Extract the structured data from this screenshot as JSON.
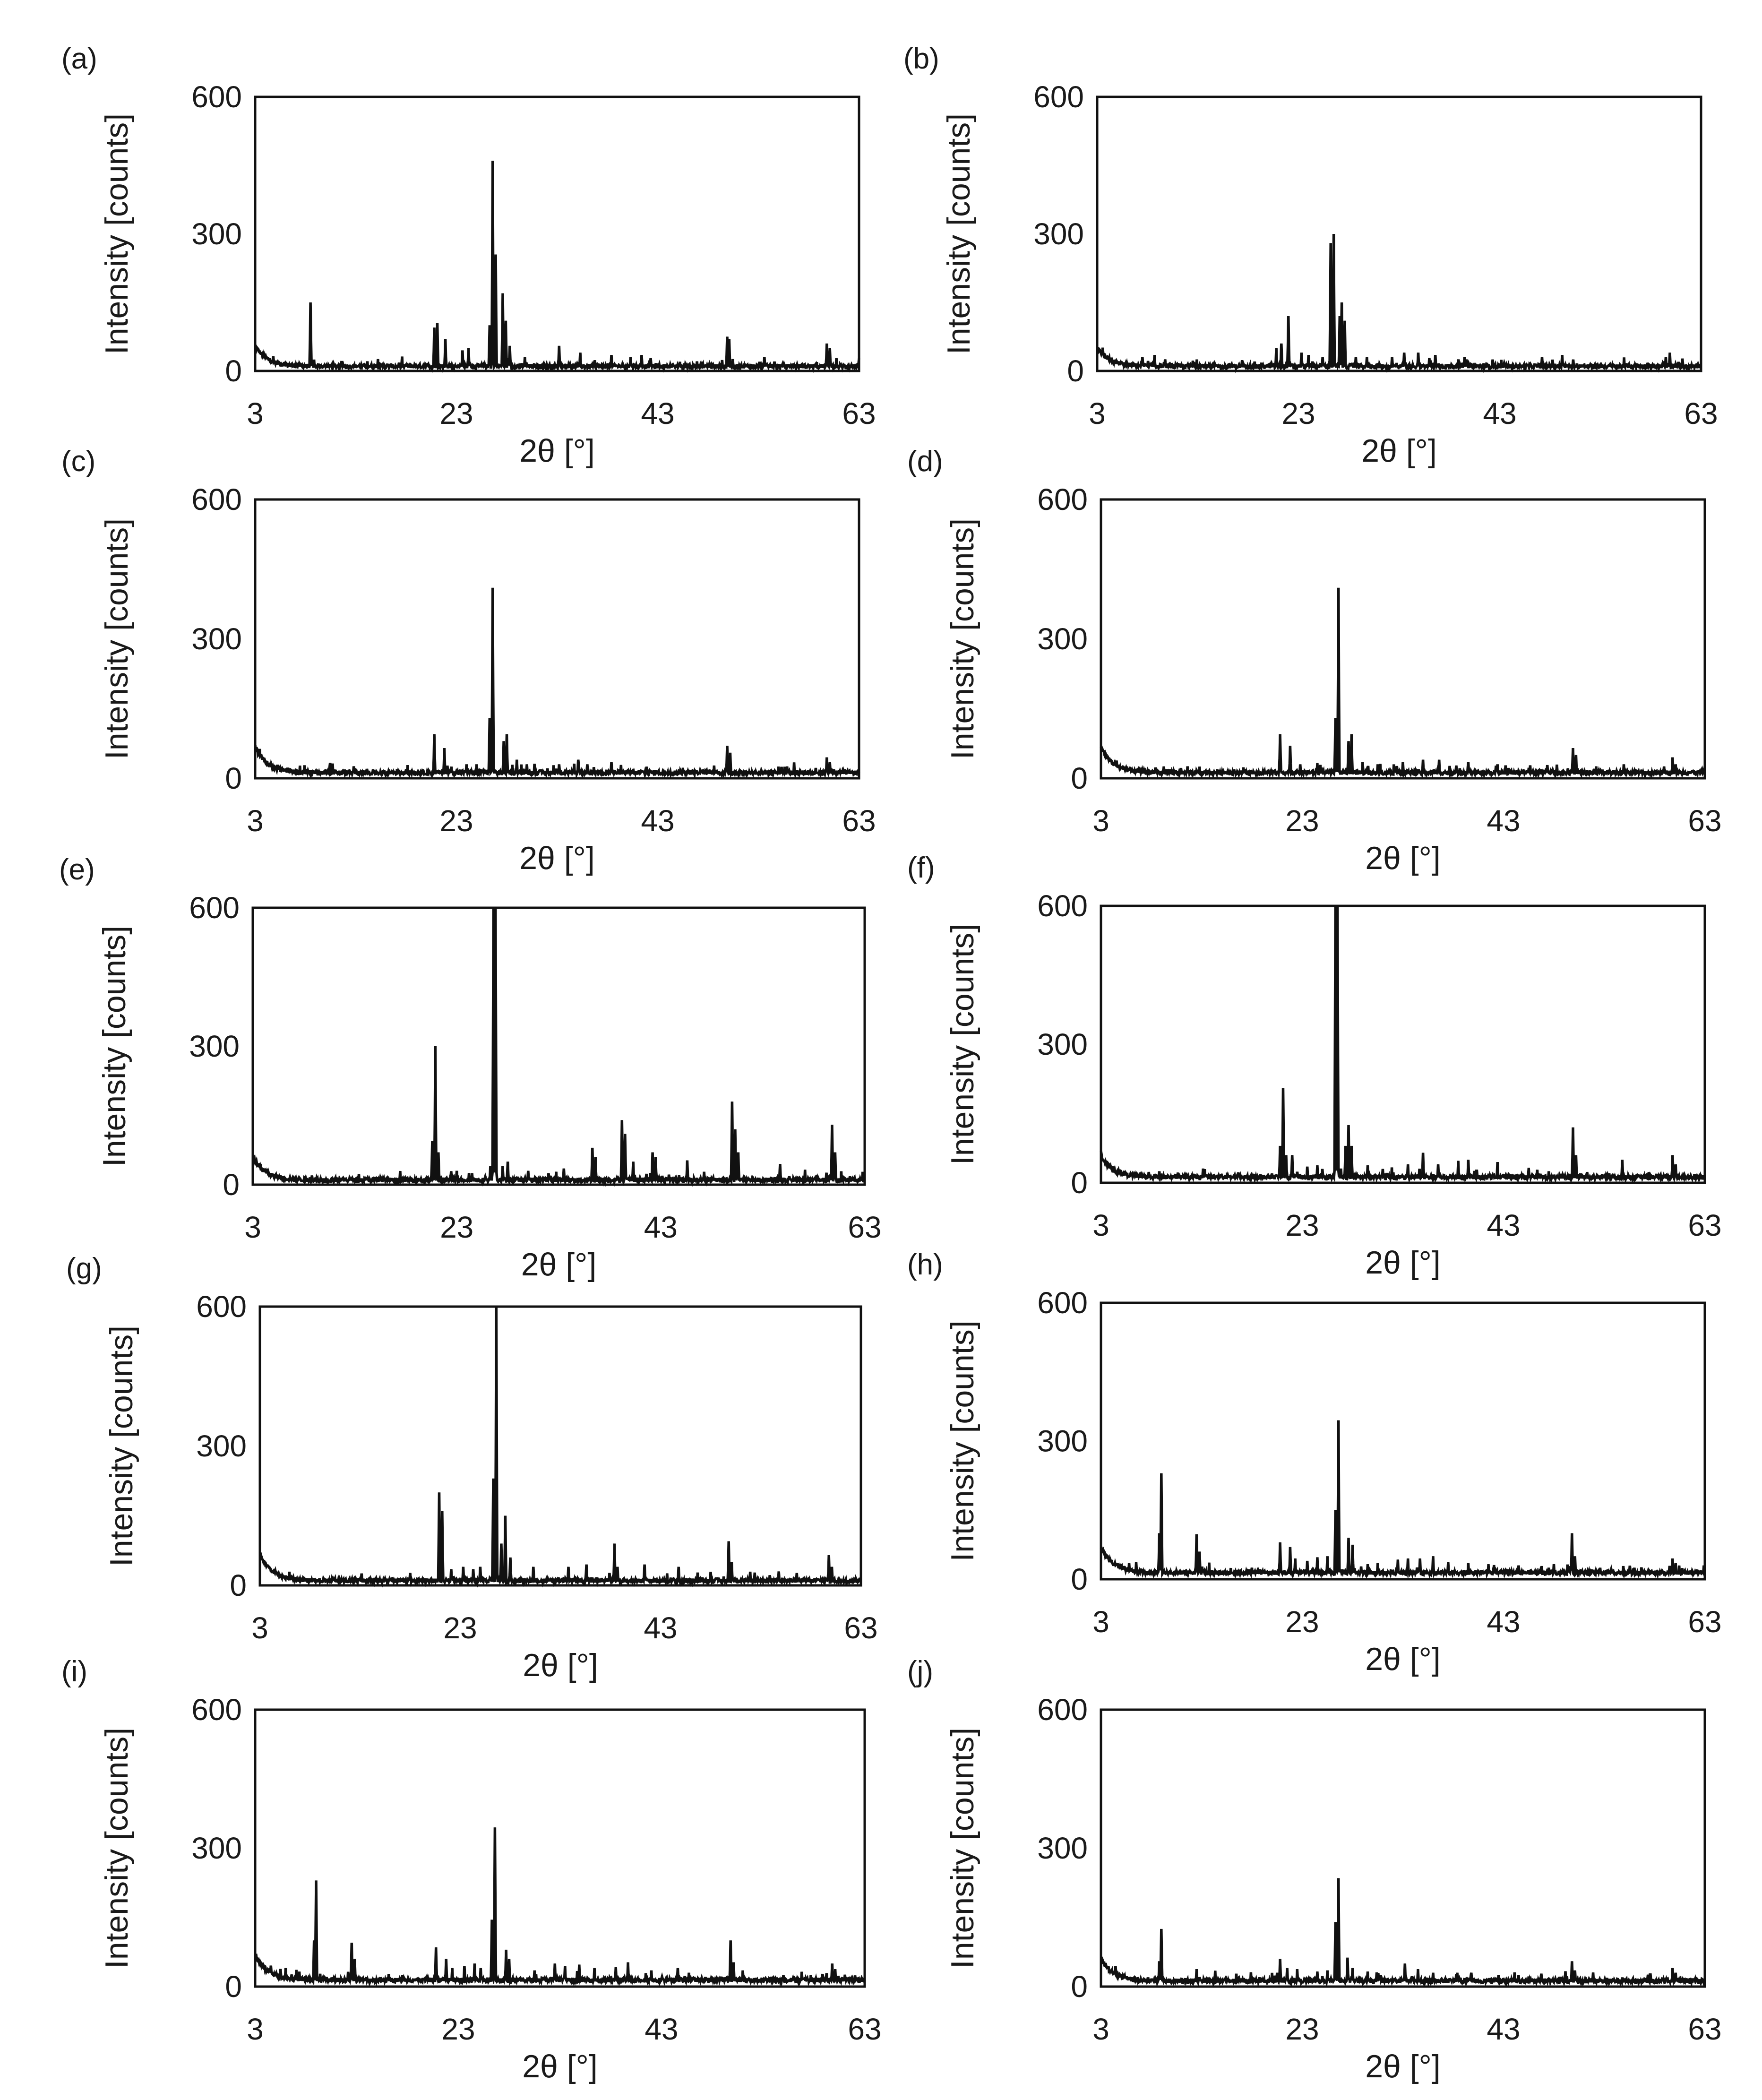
{
  "figure": {
    "panels": [
      "(a)",
      "(b)",
      "(c)",
      "(d)",
      "(e)",
      "(f)",
      "(g)",
      "(h)",
      "(i)",
      "(j)"
    ],
    "line_color": "#111111"
  },
  "chart_data": [
    {
      "id": "a",
      "label": "(a)",
      "type": "line",
      "xlabel": "2θ [°]",
      "ylabel": "Intensity [counts]",
      "xlim": [
        3,
        63
      ],
      "ylim": [
        0,
        600
      ],
      "xticks": [
        "3",
        "23",
        "43",
        "63"
      ],
      "yticks": [
        "0",
        "300",
        "600"
      ],
      "baseline": 6,
      "low_angle": 45,
      "peaks": [
        [
          8.5,
          150
        ],
        [
          20.8,
          95
        ],
        [
          21.1,
          105
        ],
        [
          21.9,
          70
        ],
        [
          23.6,
          45
        ],
        [
          24.2,
          50
        ],
        [
          26.3,
          100
        ],
        [
          26.6,
          460
        ],
        [
          26.9,
          255
        ],
        [
          27.6,
          170
        ],
        [
          27.9,
          110
        ],
        [
          28.3,
          55
        ],
        [
          29.8,
          30
        ],
        [
          33.2,
          55
        ],
        [
          35.3,
          40
        ],
        [
          38.4,
          35
        ],
        [
          40.3,
          30
        ],
        [
          41.4,
          35
        ],
        [
          42.3,
          28
        ],
        [
          45.2,
          20
        ],
        [
          49.9,
          75
        ],
        [
          50.1,
          70
        ],
        [
          53.1,
          20
        ],
        [
          59.8,
          60
        ],
        [
          60.1,
          50
        ]
      ]
    },
    {
      "id": "b",
      "label": "(b)",
      "type": "line",
      "xlabel": "2θ [°]",
      "ylabel": "Intensity [counts]",
      "xlim": [
        3,
        63
      ],
      "ylim": [
        0,
        600
      ],
      "xticks": [
        "3",
        "23",
        "43",
        "63"
      ],
      "yticks": [
        "0",
        "300",
        "600"
      ],
      "baseline": 6,
      "low_angle": 40,
      "peaks": [
        [
          8.7,
          35
        ],
        [
          12.5,
          20
        ],
        [
          20.8,
          50
        ],
        [
          21.3,
          60
        ],
        [
          22.0,
          120
        ],
        [
          23.3,
          40
        ],
        [
          24.0,
          35
        ],
        [
          25.4,
          30
        ],
        [
          26.2,
          280
        ],
        [
          26.5,
          300
        ],
        [
          27.1,
          120
        ],
        [
          27.3,
          150
        ],
        [
          27.6,
          110
        ],
        [
          28.7,
          30
        ],
        [
          29.8,
          30
        ],
        [
          32.3,
          30
        ],
        [
          33.5,
          40
        ],
        [
          34.9,
          40
        ],
        [
          36.6,
          35
        ],
        [
          39.5,
          30
        ],
        [
          42.3,
          25
        ],
        [
          47.2,
          30
        ],
        [
          49.2,
          35
        ],
        [
          50.3,
          25
        ],
        [
          59.5,
          30
        ],
        [
          59.9,
          40
        ]
      ]
    },
    {
      "id": "c",
      "label": "(c)",
      "type": "line",
      "xlabel": "2θ [°]",
      "ylabel": "Intensity [counts]",
      "xlim": [
        3,
        63
      ],
      "ylim": [
        0,
        600
      ],
      "xticks": [
        "3",
        "23",
        "43",
        "63"
      ],
      "yticks": [
        "0",
        "300",
        "600"
      ],
      "baseline": 8,
      "low_angle": 55,
      "peaks": [
        [
          13.0,
          20
        ],
        [
          20.8,
          95
        ],
        [
          21.8,
          65
        ],
        [
          22.5,
          25
        ],
        [
          24.0,
          30
        ],
        [
          25.0,
          30
        ],
        [
          26.3,
          130
        ],
        [
          26.6,
          410
        ],
        [
          27.7,
          80
        ],
        [
          28.0,
          95
        ],
        [
          29.0,
          40
        ],
        [
          30.0,
          30
        ],
        [
          33.2,
          30
        ],
        [
          35.1,
          40
        ],
        [
          36.0,
          30
        ],
        [
          38.4,
          35
        ],
        [
          41.9,
          25
        ],
        [
          45.5,
          20
        ],
        [
          49.9,
          70
        ],
        [
          50.2,
          55
        ],
        [
          55.0,
          25
        ],
        [
          59.8,
          45
        ],
        [
          60.1,
          35
        ]
      ]
    },
    {
      "id": "d",
      "label": "(d)",
      "type": "line",
      "xlabel": "2θ [°]",
      "ylabel": "Intensity [counts]",
      "xlim": [
        3,
        63
      ],
      "ylim": [
        0,
        600
      ],
      "xticks": [
        "3",
        "23",
        "43",
        "63"
      ],
      "yticks": [
        "0",
        "300",
        "600"
      ],
      "baseline": 8,
      "low_angle": 55,
      "peaks": [
        [
          12.8,
          25
        ],
        [
          20.8,
          95
        ],
        [
          21.8,
          70
        ],
        [
          22.8,
          30
        ],
        [
          24.5,
          30
        ],
        [
          26.3,
          130
        ],
        [
          26.6,
          410
        ],
        [
          27.6,
          80
        ],
        [
          27.9,
          95
        ],
        [
          29.0,
          35
        ],
        [
          30.5,
          30
        ],
        [
          33.0,
          35
        ],
        [
          35.0,
          40
        ],
        [
          36.6,
          40
        ],
        [
          39.5,
          35
        ],
        [
          42.4,
          30
        ],
        [
          45.5,
          20
        ],
        [
          49.9,
          65
        ],
        [
          50.2,
          50
        ],
        [
          52.0,
          20
        ],
        [
          59.8,
          45
        ],
        [
          60.1,
          30
        ]
      ]
    },
    {
      "id": "e",
      "label": "(e)",
      "type": "line",
      "xlabel": "2θ [°]",
      "ylabel": "Intensity [counts]",
      "xlim": [
        3,
        63
      ],
      "ylim": [
        0,
        600
      ],
      "xticks": [
        "3",
        "23",
        "43",
        "63"
      ],
      "yticks": [
        "0",
        "300",
        "600"
      ],
      "baseline": 6,
      "low_angle": 50,
      "peaks": [
        [
          8.8,
          20
        ],
        [
          12.5,
          15
        ],
        [
          20.6,
          95
        ],
        [
          20.9,
          300
        ],
        [
          21.2,
          70
        ],
        [
          23.0,
          30
        ],
        [
          24.5,
          25
        ],
        [
          26.3,
          40
        ],
        [
          26.6,
          600
        ],
        [
          26.8,
          600
        ],
        [
          27.5,
          40
        ],
        [
          28.0,
          50
        ],
        [
          30.0,
          30
        ],
        [
          32.0,
          25
        ],
        [
          33.5,
          35
        ],
        [
          36.3,
          80
        ],
        [
          36.6,
          60
        ],
        [
          39.2,
          140
        ],
        [
          39.5,
          110
        ],
        [
          40.3,
          50
        ],
        [
          42.2,
          70
        ],
        [
          42.5,
          60
        ],
        [
          45.6,
          50
        ],
        [
          50.0,
          180
        ],
        [
          50.3,
          120
        ],
        [
          50.6,
          70
        ],
        [
          54.7,
          45
        ],
        [
          59.8,
          130
        ],
        [
          60.1,
          70
        ]
      ]
    },
    {
      "id": "f",
      "label": "(f)",
      "type": "line",
      "xlabel": "2θ [°]",
      "ylabel": "Intensity [counts]",
      "xlim": [
        3,
        63
      ],
      "ylim": [
        0,
        600
      ],
      "xticks": [
        "3",
        "23",
        "43",
        "63"
      ],
      "yticks": [
        "0",
        "300",
        "600"
      ],
      "baseline": 8,
      "low_angle": 45,
      "peaks": [
        [
          8.8,
          25
        ],
        [
          12.3,
          15
        ],
        [
          20.0,
          20
        ],
        [
          20.8,
          80
        ],
        [
          21.1,
          205
        ],
        [
          21.4,
          60
        ],
        [
          22.0,
          60
        ],
        [
          23.5,
          35
        ],
        [
          24.5,
          35
        ],
        [
          25.0,
          30
        ],
        [
          26.3,
          600
        ],
        [
          26.5,
          600
        ],
        [
          27.3,
          80
        ],
        [
          27.6,
          125
        ],
        [
          27.9,
          80
        ],
        [
          29.5,
          35
        ],
        [
          31.0,
          30
        ],
        [
          33.5,
          40
        ],
        [
          35.0,
          65
        ],
        [
          36.5,
          40
        ],
        [
          38.5,
          45
        ],
        [
          39.5,
          50
        ],
        [
          42.4,
          45
        ],
        [
          45.5,
          30
        ],
        [
          47.5,
          25
        ],
        [
          49.9,
          120
        ],
        [
          50.2,
          60
        ],
        [
          54.8,
          50
        ],
        [
          59.8,
          60
        ],
        [
          60.1,
          40
        ]
      ]
    },
    {
      "id": "g",
      "label": "(g)",
      "type": "line",
      "xlabel": "2θ [°]",
      "ylabel": "Intensity [counts]",
      "xlim": [
        3,
        63
      ],
      "ylim": [
        0,
        600
      ],
      "xticks": [
        "3",
        "23",
        "43",
        "63"
      ],
      "yticks": [
        "0",
        "300",
        "600"
      ],
      "baseline": 6,
      "low_angle": 60,
      "peaks": [
        [
          8.0,
          15
        ],
        [
          14.0,
          15
        ],
        [
          15.5,
          15
        ],
        [
          20.9,
          200
        ],
        [
          21.2,
          160
        ],
        [
          22.1,
          35
        ],
        [
          23.3,
          40
        ],
        [
          24.3,
          35
        ],
        [
          25.0,
          40
        ],
        [
          26.3,
          230
        ],
        [
          26.6,
          600
        ],
        [
          27.1,
          90
        ],
        [
          27.5,
          150
        ],
        [
          28.0,
          60
        ],
        [
          30.3,
          40
        ],
        [
          33.8,
          40
        ],
        [
          35.6,
          45
        ],
        [
          38.4,
          90
        ],
        [
          38.7,
          40
        ],
        [
          41.4,
          45
        ],
        [
          44.8,
          40
        ],
        [
          49.8,
          95
        ],
        [
          50.1,
          50
        ],
        [
          52.4,
          25
        ],
        [
          54.8,
          30
        ],
        [
          59.8,
          65
        ],
        [
          60.1,
          40
        ]
      ]
    },
    {
      "id": "h",
      "label": "(h)",
      "type": "line",
      "xlabel": "2θ [°]",
      "ylabel": "Intensity [counts]",
      "xlim": [
        3,
        63
      ],
      "ylim": [
        0,
        600
      ],
      "xticks": [
        "3",
        "23",
        "43",
        "63"
      ],
      "yticks": [
        "0",
        "300",
        "600"
      ],
      "baseline": 10,
      "low_angle": 55,
      "peaks": [
        [
          6.5,
          35
        ],
        [
          8.8,
          100
        ],
        [
          9.0,
          230
        ],
        [
          12.5,
          95
        ],
        [
          12.8,
          60
        ],
        [
          18.0,
          25
        ],
        [
          20.8,
          80
        ],
        [
          21.8,
          70
        ],
        [
          22.3,
          45
        ],
        [
          23.5,
          40
        ],
        [
          24.5,
          45
        ],
        [
          25.5,
          50
        ],
        [
          26.3,
          150
        ],
        [
          26.6,
          345
        ],
        [
          27.6,
          90
        ],
        [
          28.0,
          75
        ],
        [
          29.5,
          30
        ],
        [
          30.5,
          35
        ],
        [
          32.5,
          40
        ],
        [
          33.5,
          45
        ],
        [
          34.7,
          45
        ],
        [
          36.0,
          50
        ],
        [
          37.5,
          35
        ],
        [
          39.5,
          35
        ],
        [
          41.5,
          30
        ],
        [
          44.5,
          30
        ],
        [
          47.5,
          25
        ],
        [
          49.8,
          100
        ],
        [
          50.1,
          50
        ],
        [
          52.6,
          25
        ],
        [
          56.0,
          25
        ],
        [
          59.8,
          45
        ],
        [
          60.1,
          35
        ]
      ]
    },
    {
      "id": "i",
      "label": "(i)",
      "type": "line",
      "xlabel": "2θ [°]",
      "ylabel": "Intensity [counts]",
      "xlim": [
        3,
        63
      ],
      "ylim": [
        0,
        600
      ],
      "xticks": [
        "3",
        "23",
        "43",
        "63"
      ],
      "yticks": [
        "0",
        "300",
        "600"
      ],
      "baseline": 10,
      "low_angle": 55,
      "peaks": [
        [
          6.0,
          40
        ],
        [
          8.8,
          100
        ],
        [
          9.0,
          230
        ],
        [
          12.5,
          95
        ],
        [
          12.8,
          60
        ],
        [
          17.5,
          25
        ],
        [
          20.8,
          85
        ],
        [
          21.8,
          60
        ],
        [
          22.4,
          40
        ],
        [
          23.6,
          45
        ],
        [
          24.6,
          50
        ],
        [
          25.2,
          40
        ],
        [
          26.3,
          145
        ],
        [
          26.6,
          345
        ],
        [
          27.7,
          80
        ],
        [
          28.0,
          60
        ],
        [
          30.5,
          35
        ],
        [
          32.5,
          50
        ],
        [
          33.5,
          45
        ],
        [
          34.9,
          45
        ],
        [
          36.4,
          40
        ],
        [
          38.5,
          40
        ],
        [
          39.7,
          50
        ],
        [
          42.0,
          35
        ],
        [
          44.6,
          40
        ],
        [
          45.7,
          30
        ],
        [
          49.8,
          100
        ],
        [
          50.1,
          50
        ],
        [
          51.0,
          35
        ],
        [
          55.0,
          25
        ],
        [
          59.8,
          50
        ],
        [
          60.1,
          35
        ]
      ]
    },
    {
      "id": "j",
      "label": "(j)",
      "type": "line",
      "xlabel": "2θ [°]",
      "ylabel": "Intensity [counts]",
      "xlim": [
        3,
        63
      ],
      "ylim": [
        0,
        600
      ],
      "xticks": [
        "3",
        "23",
        "43",
        "63"
      ],
      "yticks": [
        "0",
        "300",
        "600"
      ],
      "baseline": 8,
      "low_angle": 50,
      "peaks": [
        [
          8.8,
          55
        ],
        [
          9.0,
          125
        ],
        [
          12.5,
          35
        ],
        [
          20.5,
          30
        ],
        [
          20.8,
          60
        ],
        [
          21.5,
          40
        ],
        [
          22.5,
          35
        ],
        [
          24.5,
          30
        ],
        [
          25.5,
          35
        ],
        [
          26.3,
          140
        ],
        [
          26.6,
          235
        ],
        [
          27.5,
          60
        ],
        [
          28.0,
          40
        ],
        [
          29.5,
          30
        ],
        [
          30.8,
          25
        ],
        [
          33.2,
          50
        ],
        [
          34.5,
          35
        ],
        [
          36.0,
          30
        ],
        [
          38.4,
          30
        ],
        [
          39.8,
          30
        ],
        [
          42.5,
          25
        ],
        [
          44.5,
          25
        ],
        [
          49.8,
          55
        ],
        [
          50.1,
          35
        ],
        [
          54.8,
          20
        ],
        [
          59.8,
          40
        ],
        [
          60.1,
          30
        ]
      ]
    }
  ]
}
